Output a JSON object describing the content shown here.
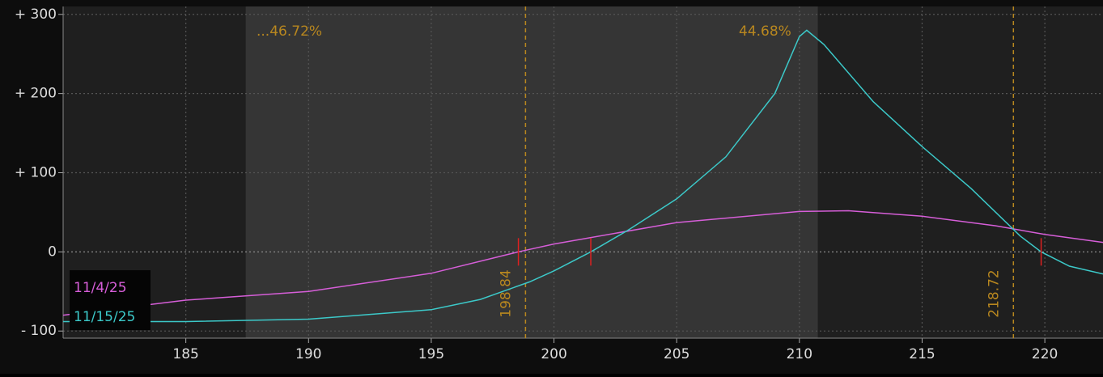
{
  "chart_data": {
    "type": "line",
    "x_domain": "price",
    "xlim": [
      180,
      222.37
    ],
    "ylim": [
      -109,
      310
    ],
    "xticks": [
      185,
      190,
      195,
      200,
      205,
      210,
      215,
      220
    ],
    "yticks": [
      {
        "value": 300,
        "label": "+ 300"
      },
      {
        "value": 200,
        "label": "+ 200"
      },
      {
        "value": 100,
        "label": "+ 100"
      },
      0,
      {
        "value": -100,
        "label": "- 100"
      }
    ],
    "grid": true,
    "shaded_range": [
      187.44,
      210.75
    ],
    "vlines": [
      198.84,
      218.72
    ],
    "vline_color": "#b8871f",
    "annotations": [
      "...46.72%",
      "44.68%"
    ],
    "breakevens": [
      198.55,
      201.5,
      219.85
    ],
    "breakeven_color": "#e02020",
    "legend": "lower left",
    "series": [
      {
        "name": "11/4/25",
        "color": "#d65ed8",
        "x": [
          180,
          185,
          190,
          195,
          198.55,
          200,
          205,
          210,
          212,
          215,
          218,
          220,
          222.37
        ],
        "values": [
          -80,
          -61,
          -50,
          -27,
          0,
          10,
          37,
          51,
          52,
          45,
          33,
          22,
          12
        ]
      },
      {
        "name": "11/15/25",
        "color": "#3cc9c9",
        "x": [
          180,
          185,
          190,
          195,
          197,
          199,
          200,
          201.5,
          203,
          205,
          207,
          209,
          210,
          210.3,
          211,
          213,
          215,
          217,
          219,
          219.85,
          221,
          222.37
        ],
        "values": [
          -88,
          -88,
          -85,
          -73,
          -60,
          -38,
          -24,
          0,
          27,
          67,
          120,
          200,
          272,
          280,
          262,
          190,
          133,
          80,
          20,
          0,
          -18,
          -28
        ]
      }
    ]
  }
}
